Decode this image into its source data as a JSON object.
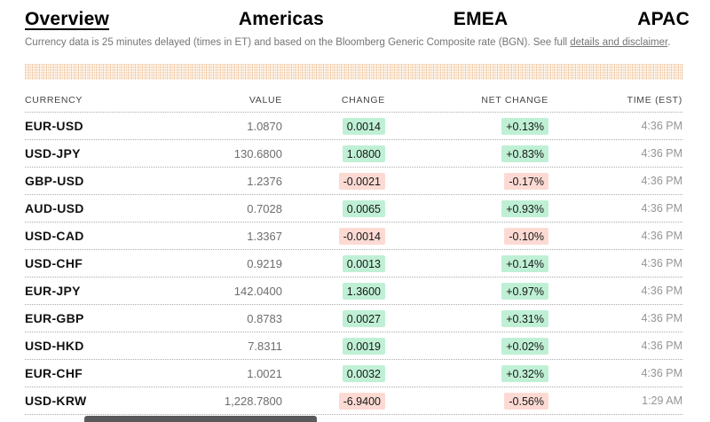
{
  "tabs": [
    {
      "label": "Overview",
      "active": true
    },
    {
      "label": "Americas",
      "active": false
    },
    {
      "label": "EMEA",
      "active": false
    },
    {
      "label": "APAC",
      "active": false
    }
  ],
  "disclaimer": {
    "before": "Currency data is 25 minutes delayed (times in ET) and based on the Bloomberg Generic Composite rate (BGN). See full ",
    "link": "details and disclaimer",
    "after": "."
  },
  "table": {
    "headers": [
      "CURRENCY",
      "VALUE",
      "CHANGE",
      "NET CHANGE",
      "TIME (EST)"
    ],
    "rows": [
      {
        "currency": "EUR-USD",
        "value": "1.0870",
        "change": "0.0014",
        "net_change": "+0.13%",
        "direction": "up",
        "time": "4:36 PM"
      },
      {
        "currency": "USD-JPY",
        "value": "130.6800",
        "change": "1.0800",
        "net_change": "+0.83%",
        "direction": "up",
        "time": "4:36 PM"
      },
      {
        "currency": "GBP-USD",
        "value": "1.2376",
        "change": "-0.0021",
        "net_change": "-0.17%",
        "direction": "down",
        "time": "4:36 PM"
      },
      {
        "currency": "AUD-USD",
        "value": "0.7028",
        "change": "0.0065",
        "net_change": "+0.93%",
        "direction": "up",
        "time": "4:36 PM"
      },
      {
        "currency": "USD-CAD",
        "value": "1.3367",
        "change": "-0.0014",
        "net_change": "-0.10%",
        "direction": "down",
        "time": "4:36 PM"
      },
      {
        "currency": "USD-CHF",
        "value": "0.9219",
        "change": "0.0013",
        "net_change": "+0.14%",
        "direction": "up",
        "time": "4:36 PM"
      },
      {
        "currency": "EUR-JPY",
        "value": "142.0400",
        "change": "1.3600",
        "net_change": "+0.97%",
        "direction": "up",
        "time": "4:36 PM"
      },
      {
        "currency": "EUR-GBP",
        "value": "0.8783",
        "change": "0.0027",
        "net_change": "+0.31%",
        "direction": "up",
        "time": "4:36 PM"
      },
      {
        "currency": "USD-HKD",
        "value": "7.8311",
        "change": "0.0019",
        "net_change": "+0.02%",
        "direction": "up",
        "time": "4:36 PM"
      },
      {
        "currency": "EUR-CHF",
        "value": "1.0021",
        "change": "0.0032",
        "net_change": "+0.32%",
        "direction": "up",
        "time": "4:36 PM"
      },
      {
        "currency": "USD-KRW",
        "value": "1,228.7800",
        "change": "-6.9400",
        "net_change": "-0.56%",
        "direction": "down",
        "time": "1:29 AM"
      }
    ]
  },
  "colors": {
    "positive_badge_bg": "#bff0d5",
    "negative_badge_bg": "#fcdad3",
    "stripe_accent": "#f1c49c"
  }
}
